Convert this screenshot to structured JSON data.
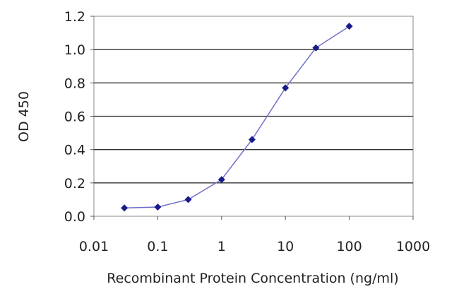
{
  "chart_data": {
    "type": "line",
    "title": "",
    "xlabel": "Recombinant Protein Concentration (ng/ml)",
    "ylabel": "OD 450",
    "x_scale": "log",
    "xlim": [
      0.01,
      1000
    ],
    "ylim": [
      0,
      1.2
    ],
    "x_ticks": [
      "0.01",
      "0.1",
      "1",
      "10",
      "100",
      "1000"
    ],
    "y_ticks": [
      "0.0",
      "0.2",
      "0.4",
      "0.6",
      "0.8",
      "1.0",
      "1.2"
    ],
    "grid": "horizontal",
    "series": [
      {
        "x": [
          0.03,
          0.1,
          0.3,
          1,
          3,
          10,
          30,
          100
        ],
        "values": [
          0.05,
          0.055,
          0.1,
          0.22,
          0.46,
          0.77,
          1.01,
          1.14
        ],
        "color": "#1a1a8c"
      }
    ]
  }
}
